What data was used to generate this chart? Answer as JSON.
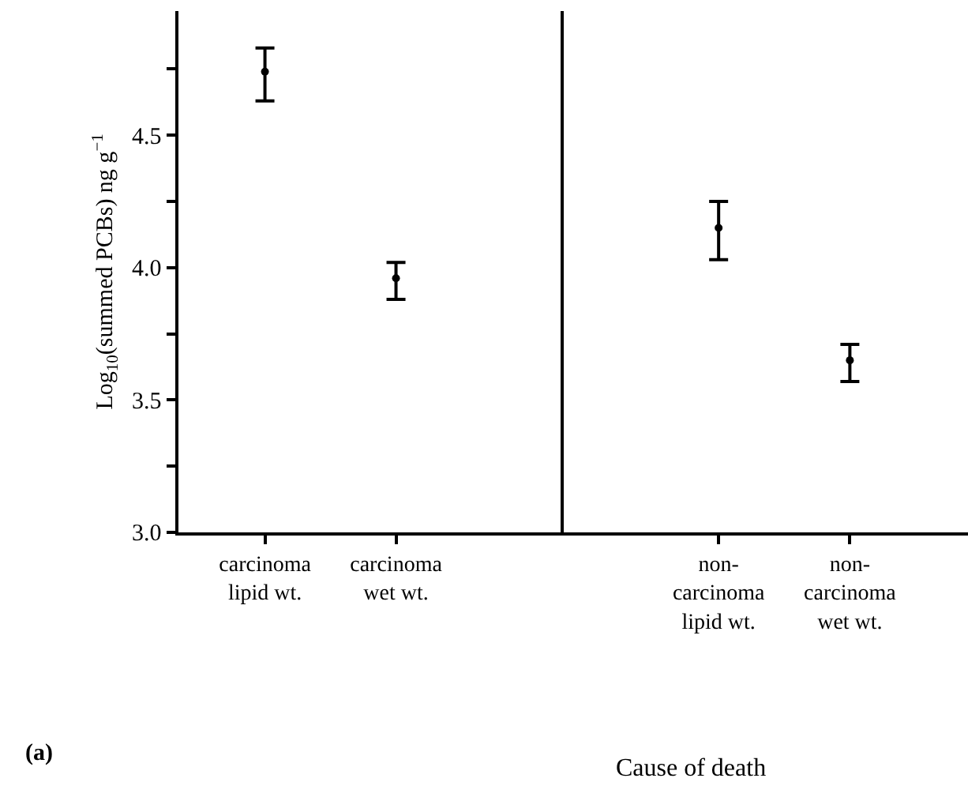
{
  "chart_data": [
    {
      "type": "scatter",
      "categories": [
        "carcinoma\nlipid wt.",
        "carcinoma\nwet wt."
      ],
      "values": [
        4.74,
        3.96
      ],
      "errors": [
        [
          4.63,
          4.83
        ],
        [
          3.88,
          4.02
        ]
      ],
      "colors": [
        "#000000",
        "#000000"
      ],
      "marker": "circle",
      "ylim": [
        3.0,
        4.97
      ],
      "yticks": [
        {
          "value": 3,
          "label": "3.0"
        },
        {
          "value": 3.25,
          "label": null
        },
        3.5,
        {
          "value": 3.75,
          "label": null
        },
        {
          "value": 4,
          "label": "4.0"
        },
        {
          "value": 4.25,
          "label": null
        },
        4.5,
        {
          "value": 4.75,
          "label": null
        }
      ],
      "ylabel": "Log$_{10}$(summed PCBs) ng g$^{−1}$",
      "xlabel": "Cause of death",
      "annotations": [
        "(a)"
      ]
    },
    {
      "type": "scatter",
      "categories": [
        "non-\ncarcinoma\nlipid wt.",
        "non-\ncarcinoma\nwet wt."
      ],
      "values": [
        4.15,
        3.65
      ],
      "errors": [
        [
          4.03,
          4.25
        ],
        [
          3.57,
          3.71
        ]
      ],
      "colors": [
        "#000000",
        "#000000"
      ],
      "marker": "circle",
      "ylim": [
        3.0,
        4.97
      ],
      "tick_labels": "x"
    }
  ]
}
